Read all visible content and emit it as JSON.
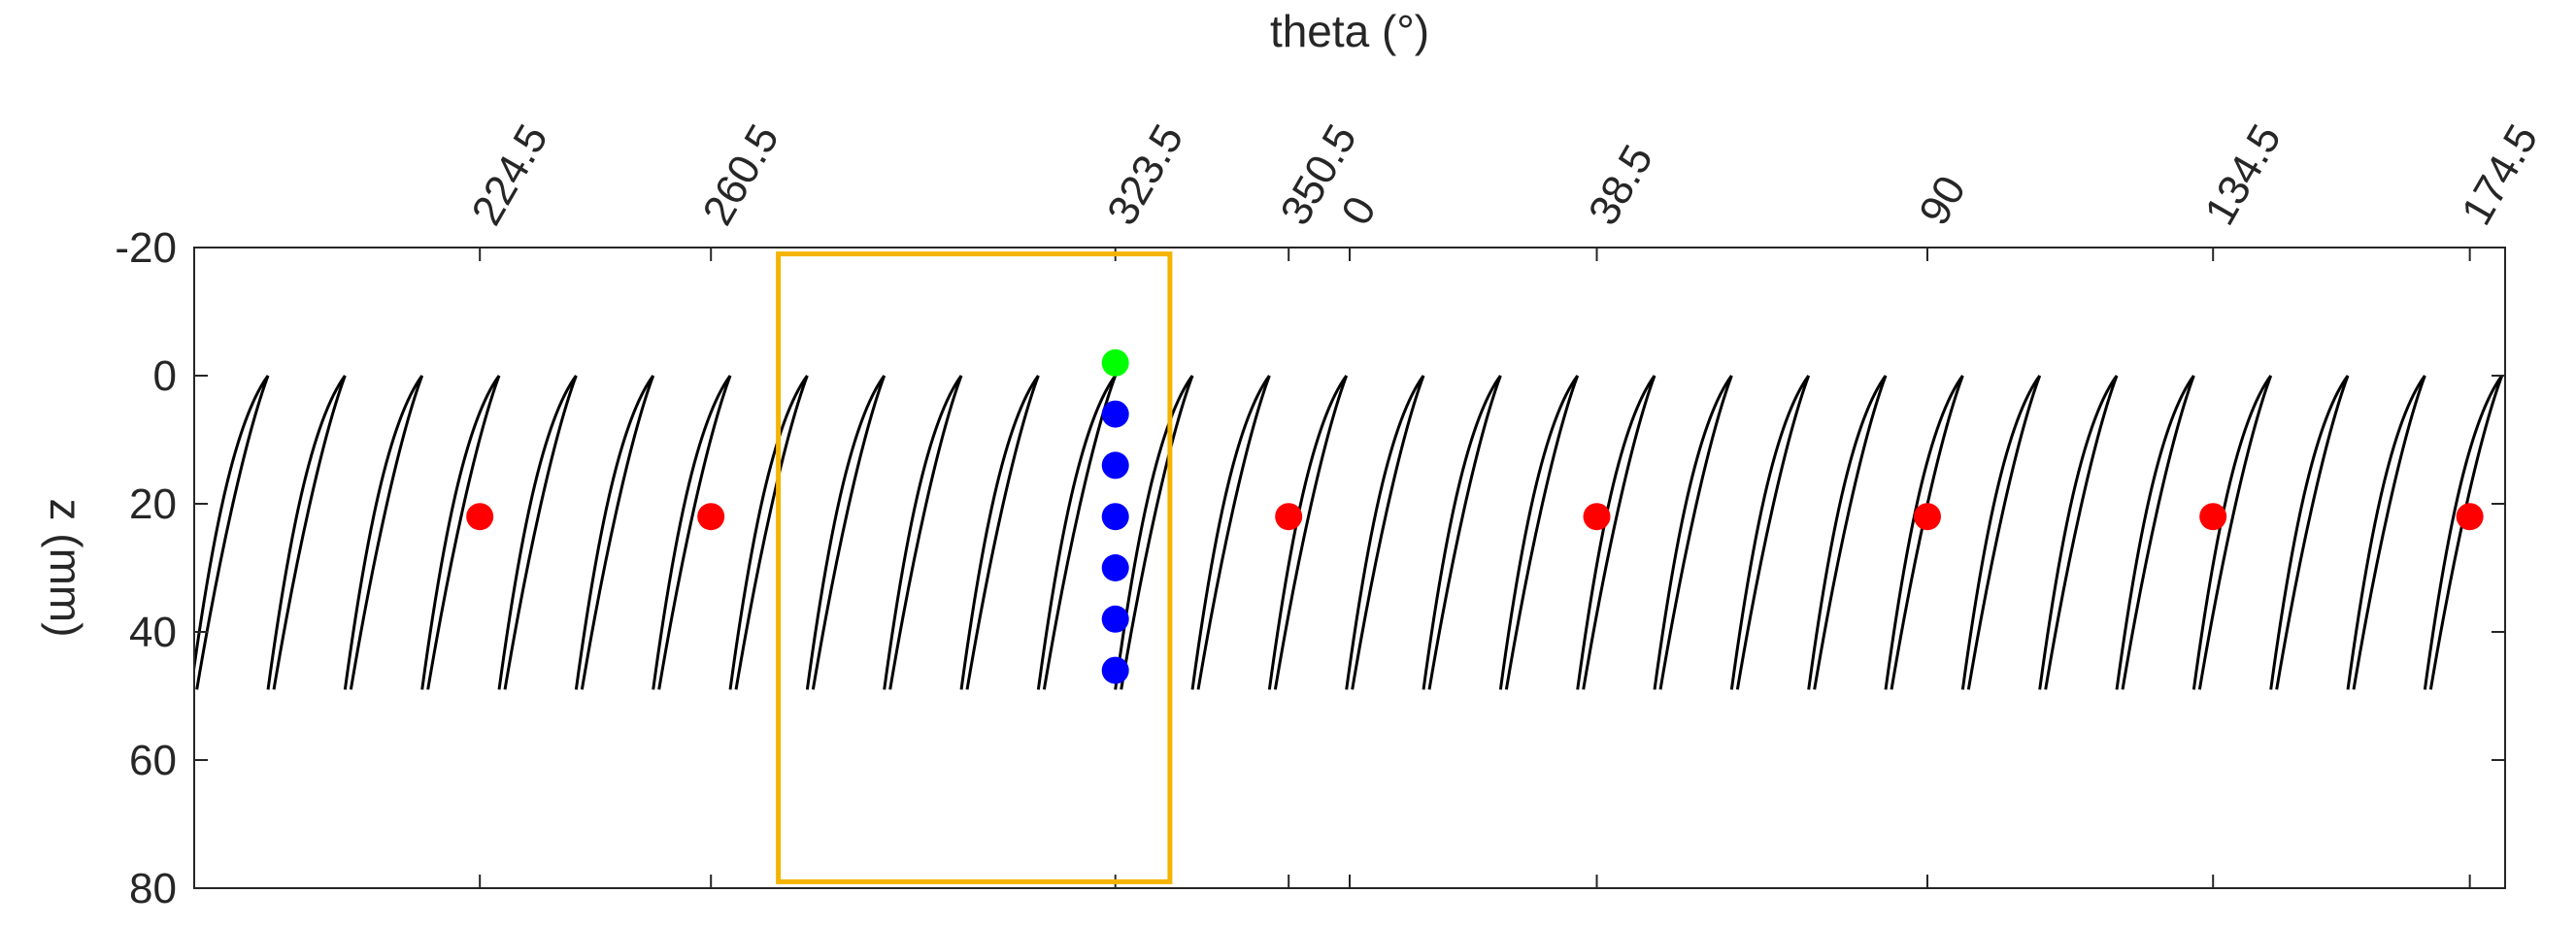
{
  "chart_data": {
    "type": "scatter",
    "title": "theta (°)",
    "xlabel": "theta (°)",
    "ylabel": "z (mm)",
    "x_unit": "degrees (unwrapped, 180 to 540)",
    "xlim": [
      180,
      540
    ],
    "ylim": [
      -20,
      80
    ],
    "y_reversed": true,
    "y_ticks": [
      "-20",
      "0",
      "20",
      "40",
      "60",
      "80"
    ],
    "x_ticks": [
      {
        "label": "224.5",
        "value": 224.5
      },
      {
        "label": "260.5",
        "value": 260.5
      },
      {
        "label": "323.5",
        "value": 323.5
      },
      {
        "label": "350.5",
        "value": 350.5
      },
      {
        "label": "0",
        "value": 360
      },
      {
        "label": "38.5",
        "value": 398.5
      },
      {
        "label": "90",
        "value": 450
      },
      {
        "label": "134.5",
        "value": 494.5
      },
      {
        "label": "174.5",
        "value": 534.5
      }
    ],
    "series": [
      {
        "name": "red markers",
        "color": "#ff0000",
        "x": [
          224.5,
          260.5,
          350.5,
          398.5,
          450,
          494.5,
          534.5
        ],
        "y": [
          22,
          22,
          22,
          22,
          22,
          22,
          22
        ]
      },
      {
        "name": "green marker",
        "color": "#00ff00",
        "x": [
          323.5
        ],
        "y": [
          -2
        ]
      },
      {
        "name": "blue markers",
        "color": "#0000ff",
        "x": [
          323.5,
          323.5,
          323.5,
          323.5,
          323.5,
          323.5
        ],
        "y": [
          6,
          14,
          22,
          30,
          38,
          46
        ]
      }
    ],
    "curves": {
      "count": 30,
      "first_top_theta": 191.5,
      "spacing_deg": 12,
      "top_z": 0,
      "bottom_z": 49,
      "theta_span_deg": 12,
      "color": "#000000"
    },
    "highlight_box": {
      "x_range": [
        271,
        332
      ],
      "y_range": [
        -19,
        79
      ],
      "color": "#f5b400"
    },
    "grid": false,
    "legend": "none"
  }
}
